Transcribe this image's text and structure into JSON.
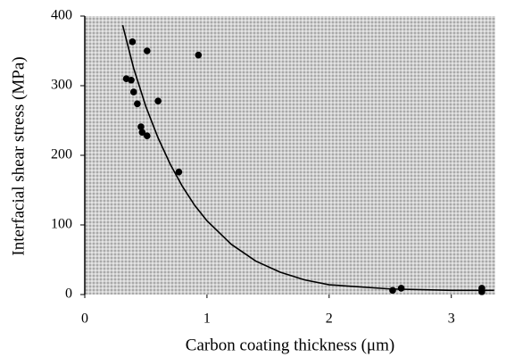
{
  "chart_data": {
    "type": "scatter",
    "xlabel": "Carbon coating thickness (μm)",
    "ylabel": "Interfacial shear stress (MPa)",
    "xlim": [
      0,
      3.36
    ],
    "ylim": [
      0,
      400
    ],
    "xticks": [
      0,
      1,
      2,
      3
    ],
    "yticks": [
      0,
      100,
      200,
      300,
      400
    ],
    "color": "#000000",
    "points": {
      "x": [
        0.34,
        0.39,
        0.38,
        0.4,
        0.43,
        0.46,
        0.47,
        0.51,
        0.51,
        0.6,
        0.77,
        0.93,
        2.52,
        2.59,
        3.25,
        3.25
      ],
      "values": [
        310,
        363,
        308,
        291,
        274,
        241,
        233,
        228,
        350,
        278,
        176,
        344,
        6,
        9,
        9,
        4
      ]
    },
    "curve": {
      "x": [
        0.31,
        0.4,
        0.5,
        0.6,
        0.7,
        0.8,
        0.9,
        1.0,
        1.2,
        1.4,
        1.6,
        1.8,
        2.0,
        2.5,
        3.0,
        3.35
      ],
      "values": [
        387,
        325,
        270,
        225,
        187,
        155,
        128,
        106,
        72,
        48,
        32,
        21,
        14,
        8,
        6,
        6
      ]
    }
  }
}
